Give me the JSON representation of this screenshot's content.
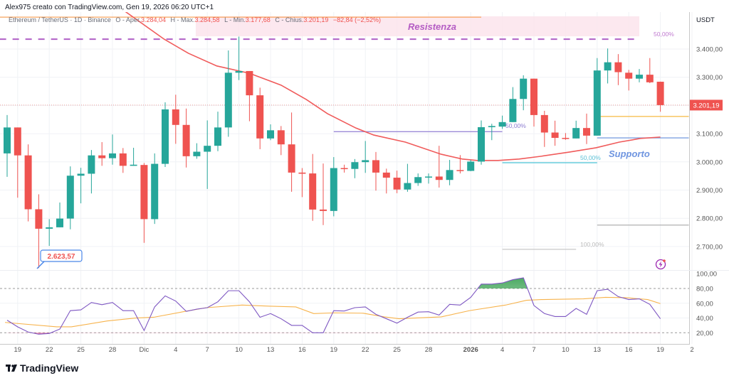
{
  "header": {
    "credit": "Alex975 creato con TradingView.com, Gen 19, 2026 06:20 UTC+1",
    "symbol": "Ethereum / TetherUS · 1D · Binance",
    "open_label": "O - Aper.",
    "open": "3.284,04",
    "high_label": "H - Max.",
    "high": "3.284,58",
    "low_label": "L - Min.",
    "low": "3.177,68",
    "close_label": "C - Chius.",
    "close": "3.201,19",
    "change": "−82,84 (−2,52%)"
  },
  "price_axis": {
    "currency": "USDT",
    "ticks": [
      "3.400,00",
      "3.300,00",
      "3.200,00",
      "3.100,00",
      "3.000,00",
      "2.900,00",
      "2.800,00",
      "2.700,00"
    ],
    "last_price_label": "3.201,19"
  },
  "rsi_axis": {
    "ticks": [
      "100,00",
      "80,00",
      "60,00",
      "40,00",
      "20,00"
    ]
  },
  "time_axis": {
    "ticks": [
      "19",
      "22",
      "25",
      "28",
      "Dic",
      "4",
      "7",
      "10",
      "13",
      "16",
      "19",
      "22",
      "25",
      "28",
      "2026",
      "4",
      "7",
      "10",
      "13",
      "16",
      "19",
      "2"
    ]
  },
  "annotations": {
    "resistance": "Resistenza",
    "support": "Supporto",
    "fib_top": "50,00%",
    "fib_mid": "50,00%",
    "fib_support": "50,00%",
    "fib_bottom": "100,00%",
    "low_marker": "2.623,57"
  },
  "footer": {
    "brand": "TradingView"
  },
  "colors": {
    "up": "#26a69a",
    "down": "#ef5350",
    "ma": "#f05b5b",
    "rsi": "#7e57c2",
    "rsi_ma": "#f7b34c",
    "resistance_zone": "#fce4ec",
    "support": "#7fa0e0"
  },
  "chart_data": {
    "type": "candlestick",
    "symbol": "ETH/USDT",
    "timeframe": "1D",
    "first_date": "Nov 18 2025",
    "last_date": "Jan 19 2026",
    "ylim": [
      2600,
      3550
    ],
    "candles_ohlc": [
      [
        3030,
        3166,
        2947,
        3122
      ],
      [
        3122,
        3122,
        2873,
        3023
      ],
      [
        3023,
        3062,
        2789,
        2832
      ],
      [
        2832,
        2885,
        2623.57,
        2763
      ],
      [
        2763,
        2797,
        2702,
        2768
      ],
      [
        2768,
        2856,
        2768,
        2799
      ],
      [
        2799,
        2984,
        2761,
        2951
      ],
      [
        2951,
        2979,
        2853,
        2958
      ],
      [
        2958,
        3042,
        2888,
        3023
      ],
      [
        3023,
        3070,
        2986,
        3013
      ],
      [
        3013,
        3097,
        2990,
        3030
      ],
      [
        3030,
        3049,
        2961,
        2986
      ],
      [
        2986,
        3050,
        2986,
        2990
      ],
      [
        2989,
        2996,
        2713,
        2797
      ],
      [
        2797,
        3030,
        2780,
        2993
      ],
      [
        2993,
        3211,
        2982,
        3186
      ],
      [
        3186,
        3238,
        3064,
        3131
      ],
      [
        3131,
        3189,
        2980,
        3020
      ],
      [
        3020,
        3066,
        3011,
        3036
      ],
      [
        3036,
        3147,
        2904,
        3057
      ],
      [
        3057,
        3178,
        3038,
        3122
      ],
      [
        3122,
        3395,
        3089,
        3316
      ],
      [
        3316,
        3444,
        3290,
        3322
      ],
      [
        3322,
        3322,
        3144,
        3236
      ],
      [
        3236,
        3263,
        3045,
        3083
      ],
      [
        3083,
        3133,
        3077,
        3112
      ],
      [
        3112,
        3127,
        3024,
        3062
      ],
      [
        3062,
        3175,
        2894,
        2962
      ],
      [
        2962,
        2978,
        2875,
        2958
      ],
      [
        2959,
        3028,
        2791,
        2831
      ],
      [
        2831,
        2994,
        2776,
        2826
      ],
      [
        2826,
        3017,
        2807,
        2978
      ],
      [
        2978,
        2990,
        2962,
        2975
      ],
      [
        2975,
        3010,
        2942,
        2999
      ],
      [
        2999,
        3074,
        2961,
        3006
      ],
      [
        3006,
        3035,
        2898,
        2962
      ],
      [
        2962,
        2976,
        2888,
        2944
      ],
      [
        2944,
        2969,
        2889,
        2902
      ],
      [
        2902,
        2993,
        2894,
        2925
      ],
      [
        2925,
        2959,
        2915,
        2946
      ],
      [
        2946,
        2959,
        2923,
        2948
      ],
      [
        2948,
        3057,
        2909,
        2936
      ],
      [
        2936,
        3007,
        2917,
        2971
      ],
      [
        2971,
        3024,
        2959,
        2968
      ],
      [
        2968,
        3007,
        2967,
        3001
      ],
      [
        3001,
        3147,
        2990,
        3123
      ],
      [
        3123,
        3135,
        3077,
        3127
      ],
      [
        3125,
        3164,
        3117,
        3141
      ],
      [
        3141,
        3265,
        3141,
        3223
      ],
      [
        3223,
        3307,
        3183,
        3295
      ],
      [
        3295,
        3295,
        3125,
        3166
      ],
      [
        3166,
        3181,
        3053,
        3104
      ],
      [
        3104,
        3146,
        3057,
        3085
      ],
      [
        3085,
        3102,
        3078,
        3083
      ],
      [
        3083,
        3146,
        3083,
        3120
      ],
      [
        3120,
        3171,
        3063,
        3093
      ],
      [
        3093,
        3368,
        3093,
        3324
      ],
      [
        3324,
        3402,
        3278,
        3353
      ],
      [
        3353,
        3382,
        3272,
        3318
      ],
      [
        3316,
        3326,
        3253,
        3295
      ],
      [
        3295,
        3329,
        3282,
        3309
      ],
      [
        3309,
        3368,
        3279,
        3282
      ],
      [
        3284.04,
        3284.58,
        3177.68,
        3201.19
      ]
    ],
    "moving_average": [
      [
        11.1,
        3536
      ],
      [
        14.9,
        3435
      ],
      [
        17.2,
        3385
      ],
      [
        19.9,
        3340
      ],
      [
        23,
        3314
      ],
      [
        26,
        3272
      ],
      [
        28.4,
        3221
      ],
      [
        30.4,
        3171
      ],
      [
        33.1,
        3120
      ],
      [
        34.8,
        3095
      ],
      [
        37.8,
        3070
      ],
      [
        41.2,
        3027
      ],
      [
        43.2,
        3010
      ],
      [
        44.6,
        3005
      ],
      [
        46.6,
        3005
      ],
      [
        48.6,
        3010
      ],
      [
        50.7,
        3020
      ],
      [
        53.4,
        3035
      ],
      [
        55.9,
        3050
      ],
      [
        58.1,
        3070
      ],
      [
        60.1,
        3083
      ],
      [
        62,
        3088
      ]
    ],
    "levels": [
      {
        "price": 3435,
        "from": -0.7,
        "to": 59.8,
        "color": "#b05fc6",
        "style": "dashed"
      },
      {
        "price": 3513,
        "from": -0.7,
        "to": 45,
        "color": "#f7a35c",
        "style": "solid"
      },
      {
        "price": 3161,
        "from": 56,
        "to": 64.7,
        "color": "#f5b942",
        "style": "solid"
      },
      {
        "price": 3085,
        "from": 56,
        "to": 64.7,
        "color": "#7fa0e0",
        "style": "solid"
      },
      {
        "price": 3107,
        "from": 31,
        "to": 47,
        "color": "#9c8ad8",
        "style": "solid"
      },
      {
        "price": 2997,
        "from": 47,
        "to": 56,
        "color": "#4cc4d8",
        "style": "solid"
      },
      {
        "price": 2776,
        "from": 56,
        "to": 64.7,
        "color": "#b0b0b0",
        "style": "solid"
      },
      {
        "price": 2690,
        "from": 47,
        "to": 54,
        "color": "#c8c8c8",
        "style": "solid"
      }
    ],
    "resistance_zone": {
      "top": 3516,
      "bottom": 3445,
      "from": 17.9,
      "to": 60
    },
    "rsi": {
      "ylim": [
        0,
        100
      ],
      "bands": [
        80,
        20
      ],
      "values": [
        37,
        28,
        21,
        18,
        19,
        25,
        50,
        51,
        61,
        58,
        61,
        50,
        50,
        23,
        55,
        70,
        63,
        49,
        52,
        54,
        62,
        77,
        77,
        62,
        41,
        46,
        39,
        30,
        30,
        20,
        20,
        50,
        49.5,
        54,
        55,
        45,
        39,
        33,
        41,
        48,
        48.5,
        44,
        58.5,
        57.5,
        68,
        86,
        86,
        87.5,
        92,
        94.5,
        57,
        46,
        42,
        42,
        53,
        45,
        77,
        79,
        69,
        65,
        66,
        58.5,
        39
      ],
      "ma": [
        [
          -0.2,
          34
        ],
        [
          4.7,
          28
        ],
        [
          6.1,
          28
        ],
        [
          9.5,
          36
        ],
        [
          12.2,
          40
        ],
        [
          13.9,
          41
        ],
        [
          16.9,
          49
        ],
        [
          18.9,
          54
        ],
        [
          22.3,
          57.5
        ],
        [
          25,
          56
        ],
        [
          27.4,
          55
        ],
        [
          29.1,
          46
        ],
        [
          31.1,
          47
        ],
        [
          33.8,
          46.5
        ],
        [
          35.8,
          41.5
        ],
        [
          37.2,
          39
        ],
        [
          41.2,
          41.5
        ],
        [
          43.9,
          50
        ],
        [
          47.3,
          57.5
        ],
        [
          49.3,
          64
        ],
        [
          50.7,
          65
        ],
        [
          54.7,
          66
        ],
        [
          56.8,
          68
        ],
        [
          58.8,
          67.5
        ],
        [
          60.8,
          65
        ],
        [
          62,
          59.5
        ]
      ]
    }
  }
}
